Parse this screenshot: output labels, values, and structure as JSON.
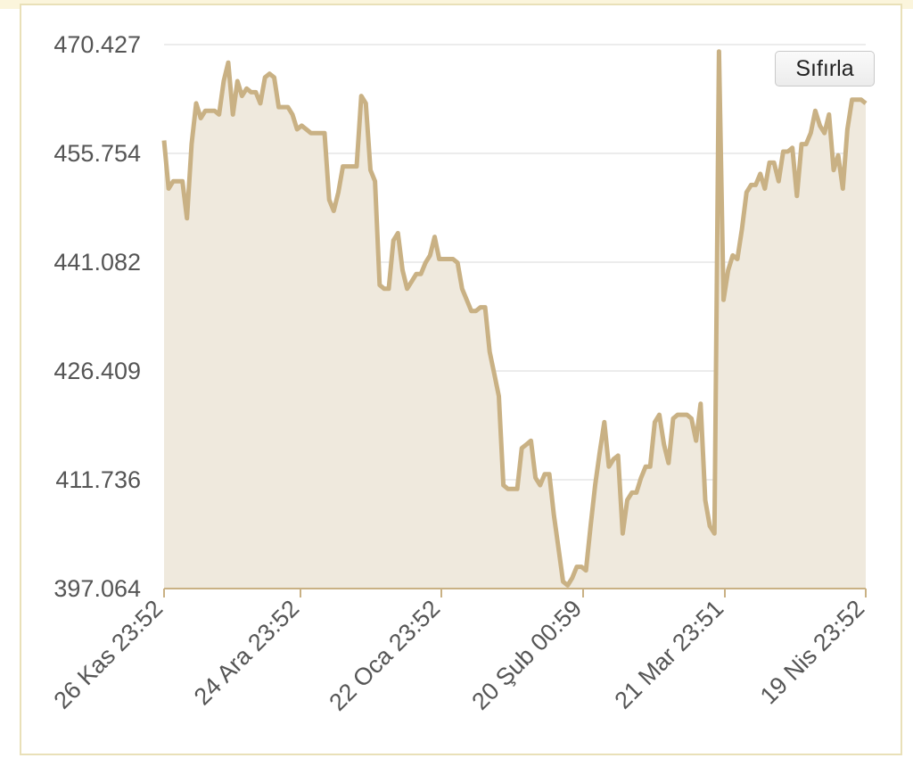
{
  "colors": {
    "line": "#c9b184",
    "fill": "#efe9dd",
    "grid": "#e6e6e6",
    "axis": "#c9b184",
    "frame": "#e9e0b8"
  },
  "reset_button": {
    "label": "Sıfırla"
  },
  "chart_data": {
    "type": "area",
    "title": "",
    "xlabel": "",
    "ylabel": "",
    "ylim": [
      397.064,
      470.427
    ],
    "y_ticks": [
      "397.064",
      "411.736",
      "426.409",
      "441.082",
      "455.754",
      "470.427"
    ],
    "x_ticks": [
      "26 Kas 23:52",
      "24 Ara 23:52",
      "22 Oca 23:52",
      "20 Şub 00:59",
      "21 Mar 23:51",
      "19 Nis 23:52"
    ],
    "grid": true,
    "legend": "none",
    "series": [
      {
        "values": [
          457.5,
          451.0,
          452.0,
          452.0,
          452.0,
          447.0,
          457.0,
          462.5,
          460.5,
          461.5,
          461.5,
          461.5,
          461.0,
          465.5,
          468.0,
          461.0,
          465.5,
          463.5,
          464.5,
          464.0,
          464.0,
          462.5,
          466.0,
          466.5,
          466.0,
          462.0,
          462.0,
          462.0,
          461.0,
          459.0,
          459.5,
          459.0,
          458.5,
          458.5,
          458.5,
          458.5,
          449.5,
          448.0,
          450.5,
          454.0,
          454.0,
          454.0,
          454.0,
          463.5,
          462.5,
          453.5,
          452.0,
          438.0,
          437.5,
          437.5,
          444.0,
          445.0,
          440.0,
          437.5,
          438.5,
          439.5,
          439.5,
          441.0,
          442.0,
          444.5,
          441.5,
          441.5,
          441.5,
          441.5,
          441.0,
          437.5,
          436.0,
          434.5,
          434.5,
          435.0,
          435.0,
          429.0,
          426.0,
          423.0,
          411.0,
          410.5,
          410.5,
          410.5,
          416.0,
          416.5,
          417.0,
          412.0,
          411.0,
          412.5,
          412.5,
          407.0,
          402.5,
          398.0,
          397.5,
          398.5,
          400.0,
          400.0,
          399.5,
          405.5,
          411.0,
          415.5,
          419.5,
          413.5,
          414.5,
          415.0,
          404.5,
          409.0,
          410.0,
          410.0,
          412.0,
          413.5,
          413.5,
          419.5,
          420.5,
          416.5,
          414.0,
          420.0,
          420.5,
          420.5,
          420.5,
          420.0,
          417.0,
          422.0,
          409.0,
          405.5,
          404.5,
          469.5,
          436.0,
          440.0,
          442.0,
          441.5,
          445.5,
          450.5,
          451.5,
          451.5,
          453.0,
          451.0,
          454.5,
          454.5,
          452.0,
          456.0,
          456.0,
          456.5,
          450.0,
          457.0,
          457.0,
          458.5,
          461.5,
          459.5,
          458.5,
          461.0,
          453.5,
          455.5,
          451.0,
          459.0,
          463.0,
          463.0,
          463.0,
          462.5
        ]
      }
    ]
  }
}
